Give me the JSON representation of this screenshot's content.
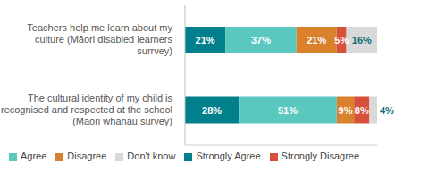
{
  "chart_data": {
    "type": "bar",
    "orientation": "horizontal",
    "stacked": true,
    "data_labels": true,
    "tick_labels": "y",
    "legend": "bottom",
    "categories": [
      "Teachers help me learn about my culture (Māori disabled learners surrvey)",
      "The cultural identity of my child is recognised and respected at the school (Māori whānau survey)"
    ],
    "xlim": [
      0,
      100
    ],
    "series": [
      {
        "name": "Strongly Agree",
        "color": "#00808a",
        "values": [
          21,
          28
        ],
        "value_labels": [
          "21%",
          "28%"
        ]
      },
      {
        "name": "Agree",
        "color": "#5bc8c0",
        "values": [
          37,
          51
        ],
        "value_labels": [
          "37%",
          "51%"
        ]
      },
      {
        "name": "Disagree",
        "color": "#d9812d",
        "values": [
          21,
          9
        ],
        "value_labels": [
          "21%",
          "9%"
        ]
      },
      {
        "name": "Strongly Disagree",
        "color": "#d6503c",
        "values": [
          5,
          8
        ],
        "value_labels": [
          "5%",
          "8%"
        ]
      },
      {
        "name": "Don't know",
        "color": "#d9d9d9",
        "values": [
          16,
          4
        ],
        "value_labels": [
          "16%",
          "4%"
        ]
      }
    ]
  }
}
